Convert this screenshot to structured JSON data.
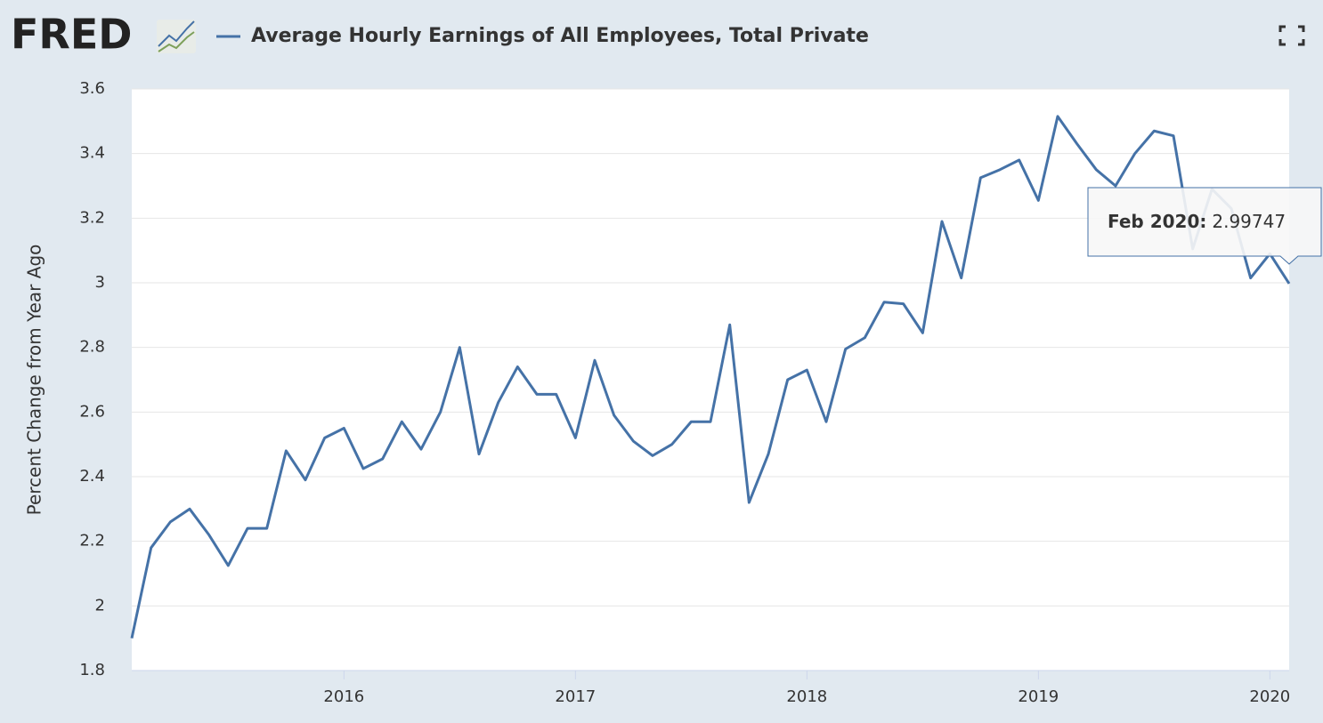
{
  "logo": "FRED",
  "chart_data": {
    "type": "line",
    "title": "Average Hourly Earnings of All Employees, Total Private",
    "y_label": "Percent Change from Year Ago",
    "x": [
      2015.0833,
      2015.1667,
      2015.25,
      2015.3333,
      2015.4167,
      2015.5,
      2015.5833,
      2015.6667,
      2015.75,
      2015.8333,
      2015.9167,
      2016.0,
      2016.0833,
      2016.1667,
      2016.25,
      2016.3333,
      2016.4167,
      2016.5,
      2016.5833,
      2016.6667,
      2016.75,
      2016.8333,
      2016.9167,
      2017.0,
      2017.0833,
      2017.1667,
      2017.25,
      2017.3333,
      2017.4167,
      2017.5,
      2017.5833,
      2017.6667,
      2017.75,
      2017.8333,
      2017.9167,
      2018.0,
      2018.0833,
      2018.1667,
      2018.25,
      2018.3333,
      2018.4167,
      2018.5,
      2018.5833,
      2018.6667,
      2018.75,
      2018.8333,
      2018.9167,
      2019.0,
      2019.0833,
      2019.1667,
      2019.25,
      2019.3333,
      2019.4167,
      2019.5,
      2019.5833,
      2019.6667,
      2019.75,
      2019.8333,
      2019.9167,
      2020.0,
      2020.0833
    ],
    "series": [
      {
        "name": "Average Hourly Earnings of All Employees, Total Private",
        "color": "#4572a7",
        "values": [
          1.9,
          2.18,
          2.26,
          2.3,
          2.22,
          2.125,
          2.24,
          2.24,
          2.48,
          2.39,
          2.52,
          2.55,
          2.425,
          2.455,
          2.57,
          2.485,
          2.6,
          2.8,
          2.47,
          2.63,
          2.74,
          2.655,
          2.655,
          2.52,
          2.76,
          2.59,
          2.51,
          2.465,
          2.5,
          2.57,
          2.57,
          2.87,
          2.32,
          2.47,
          2.7,
          2.73,
          2.57,
          2.795,
          2.83,
          2.94,
          2.935,
          2.845,
          3.19,
          3.015,
          3.325,
          3.35,
          3.38,
          3.255,
          3.515,
          3.43,
          3.35,
          3.3,
          3.4,
          3.47,
          3.455,
          3.105,
          3.29,
          3.23,
          3.015,
          3.09,
          2.99747
        ]
      }
    ],
    "tooltip_label": "Feb 2020:",
    "xlim": [
      2015.0833,
      2020.0833
    ],
    "xticks": [
      2016,
      2017,
      2018,
      2019,
      2020
    ],
    "ylim": [
      1.8,
      3.6
    ],
    "yticks": [
      1.8,
      2.0,
      2.2,
      2.4,
      2.6,
      2.8,
      3.0,
      3.2,
      3.4,
      3.6
    ],
    "grid": true
  }
}
